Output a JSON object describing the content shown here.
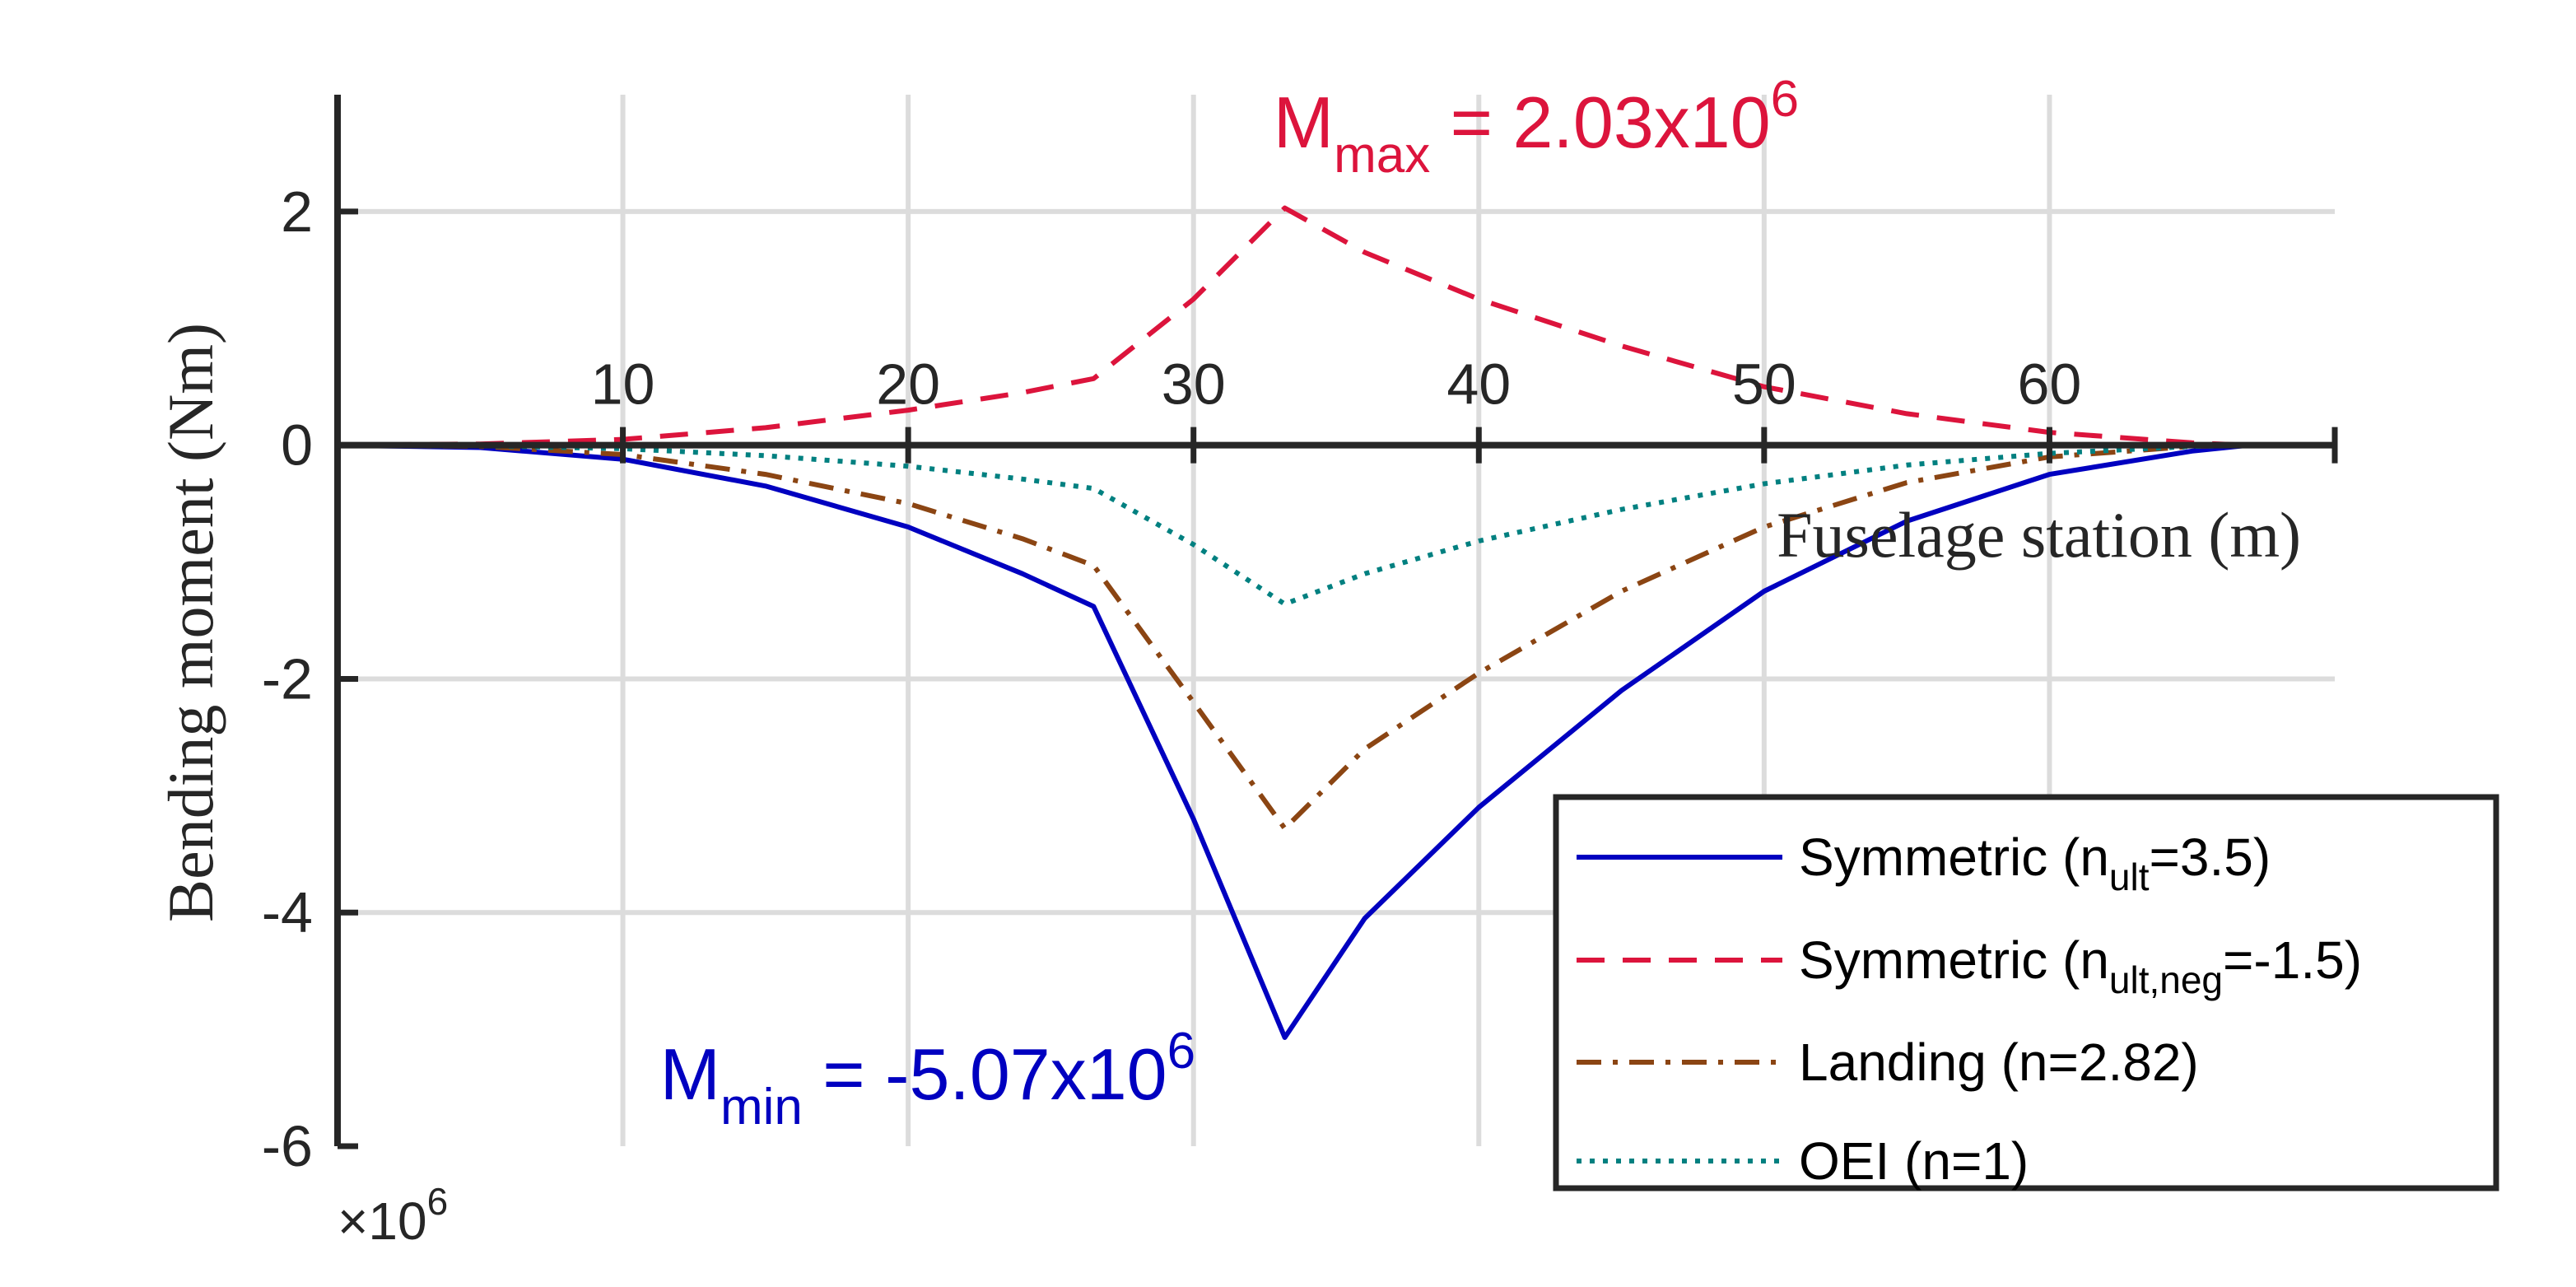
{
  "chart_data": {
    "type": "line",
    "xlabel": "Fuselage station (m)",
    "ylabel": "Bending moment (Nm)",
    "y_exponent_base": "×10",
    "y_exponent_power": "6",
    "xlim": [
      0,
      70
    ],
    "ylim": [
      -6,
      3
    ],
    "xticks": [
      10,
      20,
      30,
      40,
      50,
      60
    ],
    "yticks": [
      -6,
      -4,
      -2,
      0,
      2
    ],
    "grid": true,
    "legend_placement": "bottom-right",
    "series": [
      {
        "name": "Symmetric (n_ult=3.5)",
        "name_main": "Symmetric (n",
        "name_sub": "ult",
        "name_tail": "=3.5)",
        "color": "#0000c0",
        "style": "solid",
        "x": [
          0,
          5,
          10,
          15,
          20,
          24,
          26.5,
          30,
          33.2,
          36,
          40,
          45,
          50,
          55,
          60,
          65,
          67,
          70
        ],
        "y": [
          0,
          -0.02,
          -0.12,
          -0.35,
          -0.7,
          -1.1,
          -1.38,
          -3.2,
          -5.07,
          -4.05,
          -3.1,
          -2.1,
          -1.25,
          -0.65,
          -0.25,
          -0.05,
          0,
          0
        ]
      },
      {
        "name": "Symmetric (n_ult,neg=-1.5)",
        "name_main": "Symmetric (n",
        "name_sub": "ult,neg",
        "name_tail": "=-1.5)",
        "color": "#dc143c",
        "style": "dashed",
        "x": [
          0,
          5,
          10,
          15,
          20,
          24,
          26.5,
          30,
          33.2,
          36,
          40,
          45,
          50,
          55,
          60,
          65,
          67,
          70
        ],
        "y": [
          0,
          0.01,
          0.05,
          0.15,
          0.3,
          0.45,
          0.57,
          1.25,
          2.03,
          1.65,
          1.25,
          0.85,
          0.5,
          0.27,
          0.11,
          0.02,
          0,
          0
        ]
      },
      {
        "name": "Landing (n=2.82)",
        "name_main": "Landing (n=2.82)",
        "name_sub": "",
        "name_tail": "",
        "color": "#8b4513",
        "style": "dashdot",
        "x": [
          0,
          5,
          10,
          15,
          20,
          24,
          26.5,
          30,
          33.2,
          36,
          40,
          45,
          50,
          55,
          60,
          65,
          67,
          70
        ],
        "y": [
          0,
          -0.01,
          -0.08,
          -0.25,
          -0.5,
          -0.8,
          -1.03,
          -2.2,
          -3.28,
          -2.6,
          -1.95,
          -1.25,
          -0.7,
          -0.32,
          -0.1,
          -0.01,
          0,
          0
        ]
      },
      {
        "name": "OEI (n=1)",
        "name_main": "OEI (n=1)",
        "name_sub": "",
        "name_tail": "",
        "color": "#008080",
        "style": "dotted",
        "x": [
          0,
          5,
          10,
          15,
          20,
          24,
          26.5,
          30,
          33.2,
          36,
          40,
          45,
          50,
          55,
          60,
          65,
          67,
          70
        ],
        "y": [
          0,
          -0.005,
          -0.03,
          -0.09,
          -0.18,
          -0.29,
          -0.37,
          -0.85,
          -1.36,
          -1.1,
          -0.82,
          -0.55,
          -0.33,
          -0.17,
          -0.07,
          -0.01,
          0,
          0
        ]
      }
    ],
    "annotations": [
      {
        "id": "max",
        "main": "M",
        "sub": "max",
        "rest": " = 2.03x10",
        "sup": "6",
        "color": "#dc143c",
        "x": 32.8,
        "y": 2.55
      },
      {
        "id": "min",
        "main": "M",
        "sub": "min",
        "rest": " = -5.07x10",
        "sup": "6",
        "color": "#0000c0",
        "x": 11.3,
        "y": -5.6
      }
    ]
  }
}
